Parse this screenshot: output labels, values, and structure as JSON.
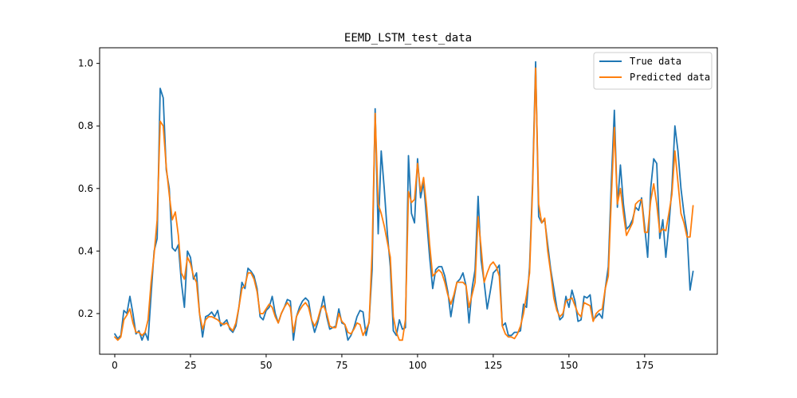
{
  "chart_data": {
    "type": "line",
    "title": "EEMD_LSTM_test_data",
    "xlabel": "",
    "ylabel": "",
    "xlim": [
      -5,
      199
    ],
    "ylim": [
      0.07,
      1.05
    ],
    "xticks": [
      0,
      25,
      50,
      75,
      100,
      125,
      150,
      175
    ],
    "xtick_labels": [
      "0",
      "25",
      "50",
      "75",
      "100",
      "125",
      "150",
      "175"
    ],
    "yticks": [
      0.2,
      0.4,
      0.6,
      0.8,
      1.0
    ],
    "ytick_labels": [
      "0.2",
      "0.4",
      "0.6",
      "0.8",
      "1.0"
    ],
    "grid": false,
    "legend_position": "top-right",
    "series": [
      {
        "name": "True data",
        "color": "#1f77b4",
        "values": [
          0.135,
          0.12,
          0.13,
          0.21,
          0.2,
          0.255,
          0.2,
          0.135,
          0.145,
          0.115,
          0.14,
          0.115,
          0.26,
          0.4,
          0.44,
          0.92,
          0.89,
          0.66,
          0.6,
          0.41,
          0.4,
          0.42,
          0.3,
          0.22,
          0.4,
          0.38,
          0.31,
          0.33,
          0.2,
          0.125,
          0.19,
          0.195,
          0.205,
          0.19,
          0.21,
          0.16,
          0.17,
          0.18,
          0.15,
          0.14,
          0.16,
          0.22,
          0.3,
          0.28,
          0.345,
          0.335,
          0.32,
          0.28,
          0.19,
          0.18,
          0.21,
          0.22,
          0.255,
          0.2,
          0.17,
          0.2,
          0.22,
          0.245,
          0.24,
          0.115,
          0.19,
          0.22,
          0.24,
          0.25,
          0.24,
          0.18,
          0.14,
          0.17,
          0.21,
          0.255,
          0.19,
          0.15,
          0.155,
          0.16,
          0.215,
          0.17,
          0.165,
          0.115,
          0.13,
          0.155,
          0.19,
          0.21,
          0.205,
          0.13,
          0.175,
          0.34,
          0.855,
          0.455,
          0.72,
          0.6,
          0.46,
          0.35,
          0.145,
          0.13,
          0.18,
          0.15,
          0.155,
          0.705,
          0.52,
          0.49,
          0.695,
          0.57,
          0.62,
          0.5,
          0.38,
          0.28,
          0.34,
          0.35,
          0.35,
          0.32,
          0.27,
          0.19,
          0.25,
          0.3,
          0.31,
          0.33,
          0.29,
          0.17,
          0.28,
          0.34,
          0.575,
          0.37,
          0.3,
          0.215,
          0.27,
          0.33,
          0.34,
          0.355,
          0.16,
          0.17,
          0.13,
          0.13,
          0.14,
          0.14,
          0.145,
          0.23,
          0.22,
          0.35,
          0.62,
          1.005,
          0.51,
          0.49,
          0.5,
          0.42,
          0.34,
          0.28,
          0.22,
          0.18,
          0.19,
          0.255,
          0.22,
          0.275,
          0.24,
          0.175,
          0.18,
          0.255,
          0.25,
          0.26,
          0.18,
          0.19,
          0.2,
          0.185,
          0.28,
          0.35,
          0.62,
          0.85,
          0.54,
          0.675,
          0.55,
          0.47,
          0.48,
          0.5,
          0.54,
          0.53,
          0.57,
          0.48,
          0.38,
          0.6,
          0.695,
          0.68,
          0.44,
          0.5,
          0.38,
          0.48,
          0.6,
          0.8,
          0.72,
          0.6,
          0.52,
          0.46,
          0.275,
          0.335
        ]
      },
      {
        "name": "Predicted data",
        "color": "#ff7f0e",
        "values": [
          0.125,
          0.115,
          0.125,
          0.18,
          0.195,
          0.215,
          0.17,
          0.14,
          0.14,
          0.13,
          0.14,
          0.18,
          0.3,
          0.39,
          0.5,
          0.815,
          0.8,
          0.67,
          0.58,
          0.5,
          0.525,
          0.45,
          0.33,
          0.31,
          0.38,
          0.36,
          0.32,
          0.3,
          0.2,
          0.15,
          0.18,
          0.19,
          0.19,
          0.185,
          0.18,
          0.17,
          0.165,
          0.17,
          0.155,
          0.145,
          0.17,
          0.22,
          0.28,
          0.29,
          0.33,
          0.33,
          0.31,
          0.27,
          0.2,
          0.2,
          0.215,
          0.23,
          0.22,
          0.19,
          0.17,
          0.2,
          0.22,
          0.235,
          0.22,
          0.14,
          0.19,
          0.21,
          0.225,
          0.235,
          0.22,
          0.18,
          0.16,
          0.18,
          0.215,
          0.225,
          0.2,
          0.16,
          0.155,
          0.155,
          0.2,
          0.175,
          0.165,
          0.14,
          0.135,
          0.15,
          0.17,
          0.165,
          0.13,
          0.15,
          0.17,
          0.4,
          0.84,
          0.55,
          0.52,
          0.48,
          0.43,
          0.38,
          0.19,
          0.14,
          0.115,
          0.115,
          0.18,
          0.59,
          0.555,
          0.565,
          0.68,
          0.59,
          0.635,
          0.54,
          0.42,
          0.32,
          0.33,
          0.34,
          0.33,
          0.3,
          0.26,
          0.23,
          0.26,
          0.3,
          0.3,
          0.3,
          0.29,
          0.22,
          0.26,
          0.3,
          0.51,
          0.41,
          0.3,
          0.33,
          0.355,
          0.365,
          0.35,
          0.32,
          0.16,
          0.135,
          0.125,
          0.125,
          0.12,
          0.135,
          0.16,
          0.2,
          0.26,
          0.33,
          0.6,
          0.985,
          0.55,
          0.49,
          0.505,
          0.4,
          0.33,
          0.25,
          0.21,
          0.19,
          0.2,
          0.24,
          0.245,
          0.25,
          0.225,
          0.2,
          0.19,
          0.235,
          0.23,
          0.225,
          0.175,
          0.2,
          0.21,
          0.215,
          0.28,
          0.32,
          0.57,
          0.795,
          0.55,
          0.6,
          0.52,
          0.45,
          0.47,
          0.49,
          0.55,
          0.56,
          0.565,
          0.46,
          0.46,
          0.56,
          0.615,
          0.55,
          0.46,
          0.47,
          0.465,
          0.52,
          0.58,
          0.72,
          0.62,
          0.52,
          0.49,
          0.445,
          0.445,
          0.545
        ]
      }
    ]
  }
}
